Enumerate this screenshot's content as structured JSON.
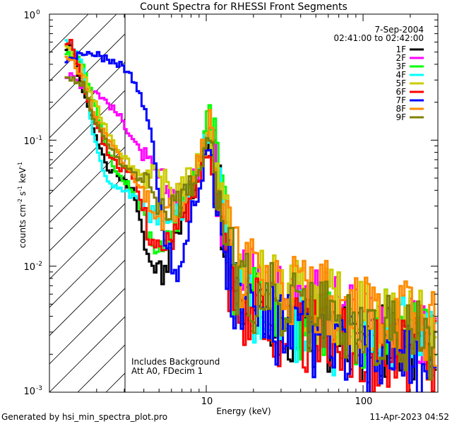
{
  "chart_data": {
    "type": "line",
    "title": "Count Spectra for RHESSI Front Segments",
    "xlabel": "Energy (keV)",
    "ylabel_main": "counts cm",
    "ylabel_exp1": "-2",
    "ylabel_mid": " s",
    "ylabel_exp2": "-1",
    "ylabel_end": " keV",
    "ylabel_exp3": "-1",
    "xscale": "log",
    "yscale": "log",
    "xlim": [
      1.0,
      300.0
    ],
    "ylim": [
      0.001,
      1.0
    ],
    "x_tick_labels": [
      {
        "value": 10,
        "label": "10"
      },
      {
        "value": 100,
        "label": "100"
      }
    ],
    "y_tick_labels": [
      {
        "value": 1.0,
        "base": "10",
        "exp": "0"
      },
      {
        "value": 0.1,
        "base": "10",
        "exp": "-1"
      },
      {
        "value": 0.01,
        "base": "10",
        "exp": "-2"
      },
      {
        "value": 0.001,
        "base": "10",
        "exp": "-3"
      }
    ],
    "date": "7-Sep-2004",
    "time_range": "02:41:00 to 02:42:00",
    "annotation_line1": "Includes Background",
    "annotation_line2": "Att A0, FDecim 1",
    "hatched_region": {
      "x_max": 3.0
    },
    "series": [
      {
        "name": "1F",
        "color": "#000000",
        "values": [
          0.55,
          0.25,
          0.12,
          0.06,
          0.05,
          0.04,
          0.012,
          0.008,
          0.02,
          0.04,
          0.13,
          0.03,
          0.006,
          0.005,
          0.004,
          0.003,
          0.003,
          0.0022,
          0.0028,
          0.0022
        ]
      },
      {
        "name": "2F",
        "color": "#ff00ff",
        "values": [
          0.32,
          0.27,
          0.25,
          0.2,
          0.15,
          0.1,
          0.06,
          0.045,
          0.035,
          0.045,
          0.13,
          0.035,
          0.01,
          0.008,
          0.006,
          0.005,
          0.004,
          0.0035,
          0.003,
          0.0025
        ]
      },
      {
        "name": "3F",
        "color": "#00ff00",
        "values": [
          0.48,
          0.42,
          0.2,
          0.08,
          0.05,
          0.04,
          0.02,
          0.012,
          0.025,
          0.05,
          0.16,
          0.035,
          0.007,
          0.006,
          0.0045,
          0.0035,
          0.0035,
          0.003,
          0.0035,
          0.0025
        ]
      },
      {
        "name": "4F",
        "color": "#00ffff",
        "values": [
          0.6,
          0.4,
          0.1,
          0.045,
          0.042,
          0.035,
          0.03,
          0.025,
          0.025,
          0.045,
          0.12,
          0.03,
          0.006,
          0.005,
          0.004,
          0.003,
          0.0028,
          0.0025,
          0.003,
          0.002
        ]
      },
      {
        "name": "5F",
        "color": "#cccc00",
        "values": [
          0.52,
          0.35,
          0.2,
          0.12,
          0.08,
          0.06,
          0.05,
          0.045,
          0.04,
          0.05,
          0.11,
          0.04,
          0.008,
          0.007,
          0.006,
          0.005,
          0.0045,
          0.004,
          0.0035,
          0.003
        ]
      },
      {
        "name": "6F",
        "color": "#ff0000",
        "values": [
          0.6,
          0.3,
          0.15,
          0.08,
          0.06,
          0.05,
          0.02,
          0.012,
          0.02,
          0.035,
          0.1,
          0.025,
          0.005,
          0.004,
          0.003,
          0.003,
          0.0025,
          0.002,
          0.0022,
          0.0018
        ]
      },
      {
        "name": "7F",
        "color": "#0000ff",
        "values": [
          0.42,
          0.5,
          0.48,
          0.44,
          0.4,
          0.3,
          0.15,
          0.02,
          0.008,
          0.03,
          0.09,
          0.02,
          0.005,
          0.004,
          0.003,
          0.0025,
          0.0022,
          0.002,
          0.0018,
          0.0015
        ]
      },
      {
        "name": "8F",
        "color": "#ff8c00",
        "values": [
          0.45,
          0.3,
          0.16,
          0.1,
          0.07,
          0.05,
          0.035,
          0.025,
          0.03,
          0.05,
          0.15,
          0.04,
          0.01,
          0.008,
          0.007,
          0.006,
          0.005,
          0.004,
          0.004,
          0.003
        ]
      },
      {
        "name": "9F",
        "color": "#808000",
        "values": [
          0.3,
          0.28,
          0.14,
          0.09,
          0.065,
          0.055,
          0.04,
          0.03,
          0.03,
          0.045,
          0.12,
          0.035,
          0.007,
          0.006,
          0.005,
          0.004,
          0.0035,
          0.003,
          0.003,
          0.0025
        ]
      }
    ],
    "energies": [
      1.35,
      1.6,
      1.9,
      2.3,
      2.8,
      3.4,
      4.2,
      5.2,
      6.5,
      8.0,
      10.3,
      12.0,
      15.0,
      20.0,
      30.0,
      45.0,
      70.0,
      110.0,
      170.0,
      280.0
    ]
  },
  "footer": {
    "generated_by": "Generated by hsi_min_spectra_plot.pro",
    "timestamp": "11-Apr-2023 04:52"
  }
}
